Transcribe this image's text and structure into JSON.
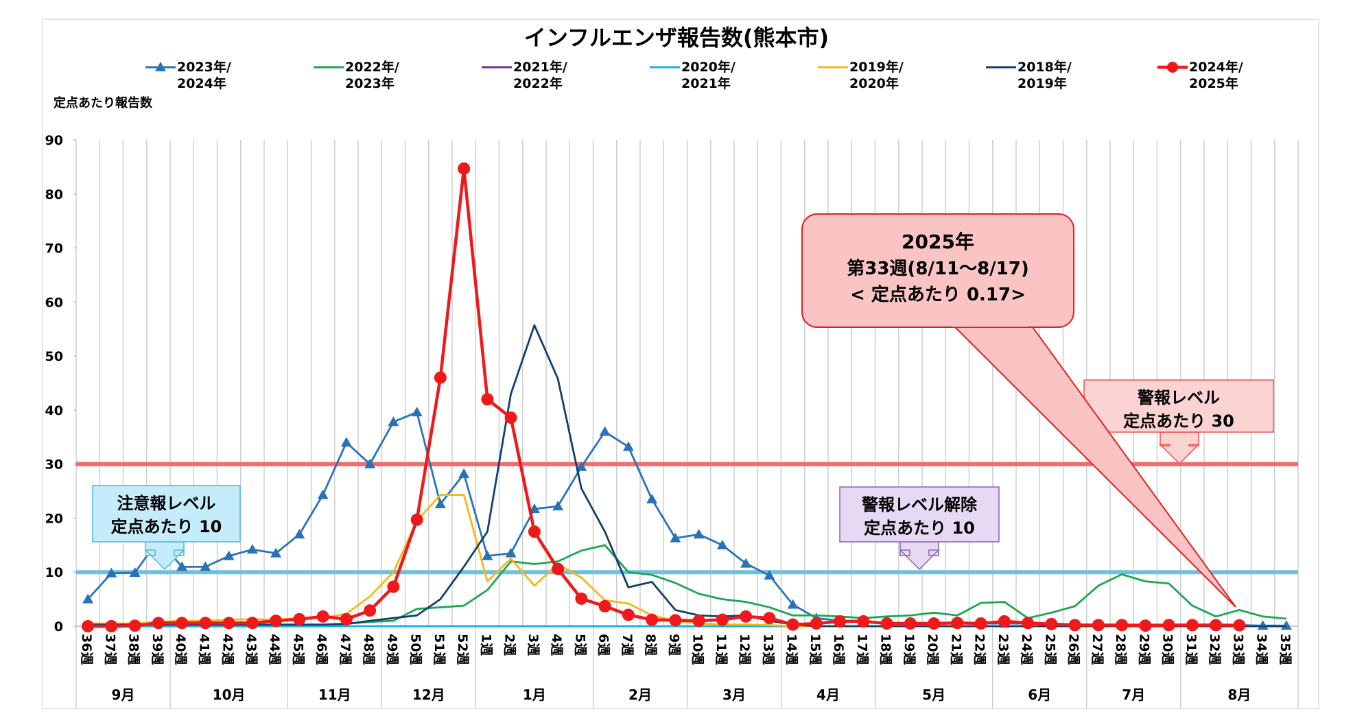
{
  "chart_data": {
    "type": "line",
    "title": "インフルエンザ報告数(熊本市)",
    "y_label": "定点あたり報告数",
    "categories": [
      "36週",
      "37週",
      "38週",
      "39週",
      "40週",
      "41週",
      "42週",
      "43週",
      "44週",
      "45週",
      "46週",
      "47週",
      "48週",
      "49週",
      "50週",
      "51週",
      "52週",
      "1週",
      "2週",
      "3週",
      "4週",
      "5週",
      "6週",
      "7週",
      "8週",
      "9週",
      "10週",
      "11週",
      "12週",
      "13週",
      "14週",
      "15週",
      "16週",
      "17週",
      "18週",
      "19週",
      "20週",
      "21週",
      "22週",
      "23週",
      "24週",
      "25週",
      "26週",
      "27週",
      "28週",
      "29週",
      "30週",
      "31週",
      "32週",
      "33週",
      "34週",
      "35週"
    ],
    "months": [
      "9月",
      "10月",
      "11月",
      "12月",
      "1月",
      "2月",
      "3月",
      "4月",
      "5月",
      "6月",
      "7月",
      "8月"
    ],
    "ylim": [
      0,
      90
    ],
    "yticks": [
      0,
      10,
      20,
      30,
      40,
      50,
      60,
      70,
      80,
      90
    ],
    "series": [
      {
        "name": "2023年/\n2024年",
        "color": "#2a72b8",
        "marker": "triangle",
        "values": [
          5,
          9.8,
          9.9,
          16,
          11,
          11,
          13,
          14.2,
          13.5,
          17,
          24.3,
          34,
          30,
          37.8,
          39.6,
          22.6,
          28.2,
          13,
          13.5,
          21.7,
          22.2,
          29.5,
          36,
          33.2,
          23.5,
          16.3,
          17,
          15,
          11.6,
          9.4,
          4,
          1.5,
          1,
          0.8,
          0.5,
          0.5,
          0.5,
          0.5,
          0.5,
          0.5,
          0.5,
          0.5,
          0.3,
          0.3,
          0.3,
          0.3,
          0.3,
          0.3,
          0.3,
          0.2,
          0.1,
          0.1
        ]
      },
      {
        "name": "2022年/\n2023年",
        "color": "#1aa850",
        "marker": "none",
        "values": [
          0,
          0,
          0,
          0,
          0,
          0,
          0,
          0,
          0,
          0.2,
          0.3,
          0.5,
          0.8,
          1,
          3.2,
          3.5,
          3.8,
          6.7,
          12,
          11.5,
          12,
          14,
          15,
          10,
          9.5,
          8,
          6,
          5,
          4.5,
          3.5,
          2,
          2,
          1.8,
          1.5,
          1.8,
          2,
          2.5,
          2,
          4.3,
          4.5,
          1.5,
          2.5,
          3.7,
          7.5,
          9.6,
          8.3,
          7.9,
          3.8,
          1.8,
          3,
          1.8,
          1.4
        ]
      },
      {
        "name": "2021年/\n2022年",
        "color": "#7030a0",
        "marker": "none",
        "values": [
          0,
          0,
          0,
          0,
          0,
          0,
          0,
          0,
          0,
          0,
          0,
          0,
          0,
          0,
          0,
          0,
          0,
          0,
          0,
          0,
          0,
          0,
          0,
          0,
          0,
          0,
          0,
          0,
          0,
          0,
          0,
          0,
          0,
          0,
          0,
          0,
          0,
          0,
          0,
          0,
          0,
          0,
          0,
          0,
          0,
          0,
          0,
          0,
          0,
          0,
          0,
          0
        ]
      },
      {
        "name": "2020年/\n2021年",
        "color": "#1ab0e8",
        "marker": "none",
        "values": [
          0,
          0,
          0,
          0,
          0,
          0,
          0,
          0,
          0,
          0,
          0,
          0,
          0,
          0,
          0,
          0,
          0,
          0,
          0,
          0,
          0,
          0,
          0,
          0,
          0,
          0,
          0,
          0,
          0,
          0,
          0,
          0,
          0,
          0,
          0,
          0,
          0,
          0,
          0,
          0,
          0,
          0,
          0,
          0,
          0,
          0,
          0,
          0,
          0,
          0,
          0,
          0
        ]
      },
      {
        "name": "2019年/\n2020年",
        "color": "#f5b817",
        "marker": "none",
        "values": [
          0.5,
          0.5,
          0.5,
          0.8,
          1,
          1,
          1.2,
          1.3,
          1.2,
          1.5,
          1.5,
          2.3,
          5.5,
          10,
          19.5,
          24.3,
          24.3,
          8.3,
          12.5,
          7.5,
          11.5,
          9,
          4.8,
          4.2,
          2,
          1,
          0.5,
          0.3,
          0.3,
          0.2,
          0,
          0,
          0,
          0,
          0,
          0,
          0,
          0,
          0,
          0,
          0,
          0,
          0,
          0,
          0,
          0,
          0,
          0,
          0,
          0,
          0,
          0
        ]
      },
      {
        "name": "2018年/\n2019年",
        "color": "#123f6e",
        "marker": "none",
        "values": [
          0.3,
          0.3,
          0.3,
          0.3,
          0.3,
          0.3,
          0.3,
          0.3,
          0.3,
          0.3,
          0.3,
          0.4,
          1,
          1.5,
          2,
          5,
          11,
          17.5,
          43,
          55.7,
          45.8,
          25.5,
          17.5,
          7.2,
          8.2,
          3,
          2,
          1.8,
          2,
          1,
          0.3,
          0,
          0,
          0,
          0,
          0,
          0,
          0,
          0,
          0,
          0,
          0,
          0,
          0,
          0,
          0,
          0,
          0,
          0,
          0,
          0,
          0
        ]
      },
      {
        "name": "2024年/\n2025年",
        "color": "#f01818",
        "marker": "circle",
        "values": [
          0,
          0,
          0.1,
          0.6,
          0.6,
          0.6,
          0.6,
          0.6,
          1,
          1.3,
          1.8,
          1.3,
          2.9,
          7.3,
          19.7,
          46,
          84.7,
          42,
          38.6,
          17.5,
          10.6,
          5.1,
          3.7,
          2.1,
          1.2,
          1.1,
          1,
          1.2,
          1.8,
          1.5,
          0.3,
          0.5,
          0.9,
          0.9,
          0.5,
          0.5,
          0.5,
          0.6,
          0.5,
          0.9,
          0.6,
          0.4,
          0.2,
          0.2,
          0.2,
          0.1,
          0.2,
          0.2,
          0.2,
          0.17,
          null,
          null
        ]
      }
    ],
    "reference_lines": [
      {
        "value": 30,
        "color": "#f26a6a"
      },
      {
        "value": 10,
        "color": "#6ec0e0"
      }
    ],
    "callout": [
      "2025年",
      "第33週(8/11～8/17)",
      "< 定点あたり  0.17>"
    ],
    "warning_box": [
      "警報レベル",
      "定点あたり 30"
    ],
    "caution_box": [
      "注意報レベル",
      "定点あたり 10"
    ],
    "release_box": [
      "警報レベル解除",
      "定点あたり  10"
    ]
  }
}
